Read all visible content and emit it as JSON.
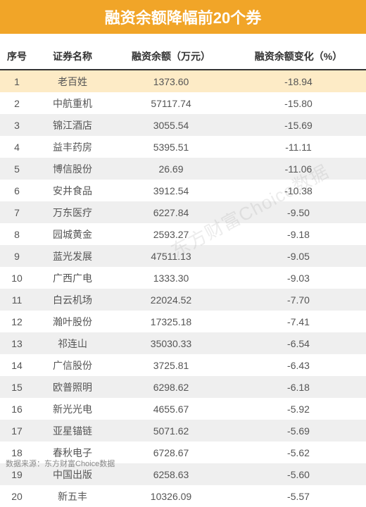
{
  "title": "融资余额降幅前20个券",
  "columns": [
    "序号",
    "证券名称",
    "融资余额（万元）",
    "融资余额变化（%）"
  ],
  "rows": [
    [
      "1",
      "老百姓",
      "1373.60",
      "-18.94"
    ],
    [
      "2",
      "中航重机",
      "57117.74",
      "-15.80"
    ],
    [
      "3",
      "锦江酒店",
      "3055.54",
      "-15.69"
    ],
    [
      "4",
      "益丰药房",
      "5395.51",
      "-11.11"
    ],
    [
      "5",
      "博信股份",
      "26.69",
      "-11.06"
    ],
    [
      "6",
      "安井食品",
      "3912.54",
      "-10.38"
    ],
    [
      "7",
      "万东医疗",
      "6227.84",
      "-9.50"
    ],
    [
      "8",
      "园城黄金",
      "2593.27",
      "-9.18"
    ],
    [
      "9",
      "蓝光发展",
      "47511.13",
      "-9.05"
    ],
    [
      "10",
      "广西广电",
      "1333.30",
      "-9.03"
    ],
    [
      "11",
      "白云机场",
      "22024.52",
      "-7.70"
    ],
    [
      "12",
      "瀚叶股份",
      "17325.18",
      "-7.41"
    ],
    [
      "13",
      "祁连山",
      "35030.33",
      "-6.54"
    ],
    [
      "14",
      "广信股份",
      "3725.81",
      "-6.43"
    ],
    [
      "15",
      "欧普照明",
      "6298.62",
      "-6.18"
    ],
    [
      "16",
      "新光光电",
      "4655.67",
      "-5.92"
    ],
    [
      "17",
      "亚星锚链",
      "5071.62",
      "-5.69"
    ],
    [
      "18",
      "春秋电子",
      "6728.67",
      "-5.62"
    ],
    [
      "19",
      "中国出版",
      "6258.63",
      "-5.60"
    ],
    [
      "20",
      "新五丰",
      "10326.09",
      "-5.57"
    ]
  ],
  "footer": "数据来源：东方财富Choice数据",
  "watermark": "东方财富Choice数据",
  "style": {
    "title_bg": "#f1a528",
    "title_color": "#ffffff",
    "header_text": "#333333",
    "header_border": "#333333",
    "cell_text": "#555555",
    "row_highlight_bg": "#fdebc6",
    "row_stripe_bg": "#efefef",
    "row_plain_bg": "#ffffff",
    "footer_text": "#888888",
    "watermark_color": "rgba(120,120,120,0.14)",
    "highlight_row_index": 0
  }
}
